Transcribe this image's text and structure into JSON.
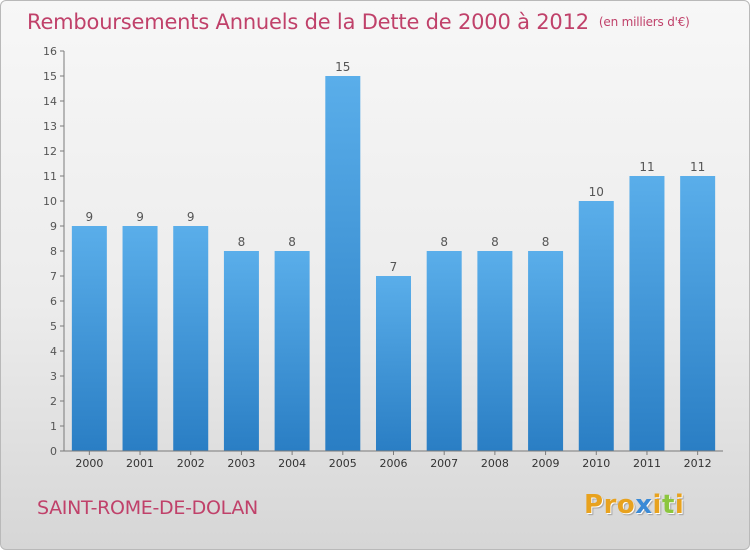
{
  "header": {
    "title": "Remboursements Annuels de la Dette de 2000 à 2012",
    "unit": "(en milliers d'€)"
  },
  "footer": {
    "commune": "SAINT-ROME-DE-DOLAN",
    "logo": "Proxiti"
  },
  "colors": {
    "title": "#c0416a",
    "bar_light": "#5aaeea",
    "bar_dark": "#2a7ec4",
    "logo_letters": [
      "#e8a21e",
      "#e8a21e",
      "#e8a21e",
      "#3a8ad6",
      "#e8a21e",
      "#8cc63f",
      "#e8a21e"
    ]
  },
  "chart_data": {
    "type": "bar",
    "categories": [
      "2000",
      "2001",
      "2002",
      "2003",
      "2004",
      "2005",
      "2006",
      "2007",
      "2008",
      "2009",
      "2010",
      "2011",
      "2012"
    ],
    "values": [
      9,
      9,
      9,
      8,
      8,
      15,
      7,
      8,
      8,
      8,
      10,
      11,
      11
    ],
    "data_labels": [
      "9",
      "9",
      "9",
      "8",
      "8",
      "15",
      "7",
      "8",
      "8",
      "8",
      "10",
      "11",
      "11"
    ],
    "yticks": [
      0,
      1,
      2,
      3,
      4,
      5,
      6,
      7,
      8,
      9,
      10,
      11,
      12,
      13,
      14,
      15,
      16
    ],
    "ylim": [
      0,
      16
    ],
    "title": "Remboursements Annuels de la Dette de 2000 à 2012",
    "unit": "(en milliers d'€)",
    "xlabel": "",
    "ylabel": "",
    "grid": false,
    "legend": "none"
  }
}
